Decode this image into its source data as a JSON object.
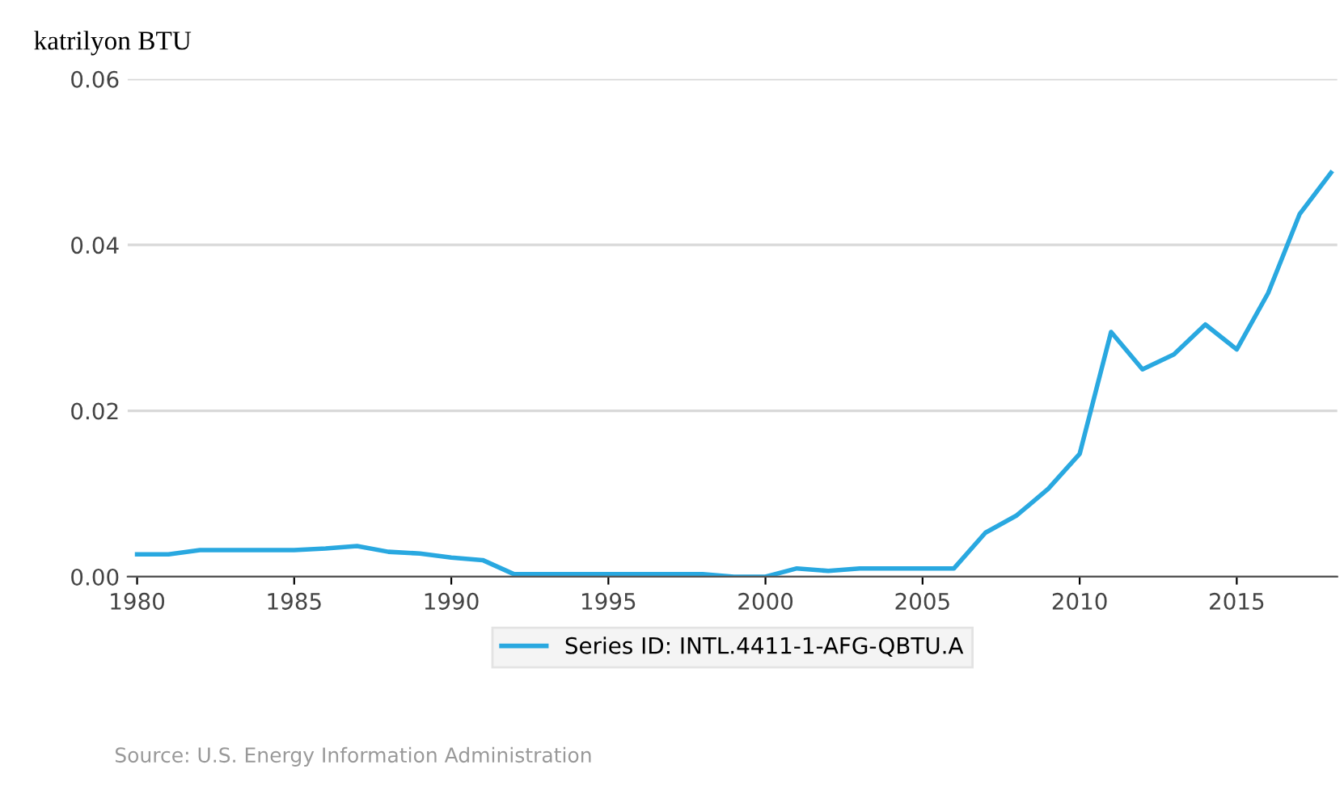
{
  "chart_data": {
    "type": "line",
    "ylabel": "katrilyon BTU",
    "x": [
      1980,
      1981,
      1982,
      1983,
      1984,
      1985,
      1986,
      1987,
      1988,
      1989,
      1990,
      1991,
      1992,
      1993,
      1994,
      1995,
      1996,
      1997,
      1998,
      1999,
      2000,
      2001,
      2002,
      2003,
      2004,
      2005,
      2006,
      2007,
      2008,
      2009,
      2010,
      2011,
      2012,
      2013,
      2014,
      2015,
      2016,
      2017,
      2018
    ],
    "series": [
      {
        "name": "Series ID: INTL.4411-1-AFG-QBTU.A",
        "color": "#29a8e0",
        "values": [
          0.0027,
          0.0027,
          0.0032,
          0.0032,
          0.0032,
          0.0032,
          0.0034,
          0.0037,
          0.003,
          0.0028,
          0.0023,
          0.002,
          0.0003,
          0.0003,
          0.0003,
          0.0003,
          0.0003,
          0.0003,
          0.0003,
          0.0,
          0.0,
          0.001,
          0.0007,
          0.001,
          0.001,
          0.001,
          0.001,
          0.0053,
          0.0074,
          0.0106,
          0.0148,
          0.0295,
          0.025,
          0.0268,
          0.0304,
          0.0274,
          0.0342,
          0.0437,
          0.0487
        ]
      }
    ],
    "xlim": [
      1979.7,
      2018.2
    ],
    "xticks": [
      1980,
      1985,
      1990,
      1995,
      2000,
      2005,
      2010,
      2015
    ],
    "ylim": [
      0,
      0.06
    ],
    "yticks": [
      {
        "value": 0,
        "label": "0.00"
      },
      {
        "value": 0.02,
        "label": "0.02"
      },
      {
        "value": 0.04,
        "label": "0.04"
      },
      {
        "value": 0.06,
        "label": "0.06"
      }
    ],
    "grid": "y",
    "legend": "bottom",
    "marker": "none",
    "line_style": "solid",
    "annotations": [
      "Source: U.S. Energy Information Administration"
    ]
  }
}
